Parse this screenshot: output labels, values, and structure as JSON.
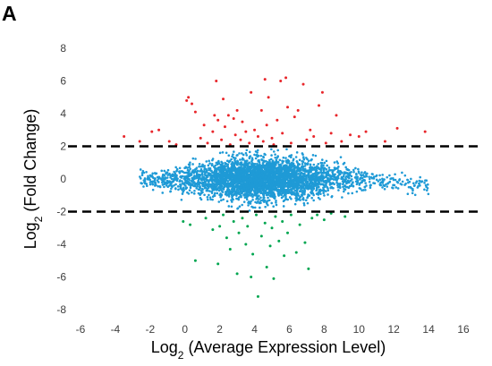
{
  "panel": {
    "letter": "A"
  },
  "chart_data": {
    "type": "scatter",
    "title": "",
    "xlabel": {
      "prefix": "Log",
      "subscript": "2",
      "suffix": " (Average Expression Level)"
    },
    "ylabel": {
      "prefix": "Log",
      "subscript": "2",
      "suffix": " (Fold Change)"
    },
    "xlim": [
      -6,
      16
    ],
    "ylim": [
      -8,
      8
    ],
    "x_ticks": [
      -6,
      -4,
      -2,
      0,
      2,
      4,
      6,
      8,
      10,
      12,
      14,
      16
    ],
    "y_ticks": [
      -8,
      -6,
      -4,
      -2,
      0,
      2,
      4,
      6,
      8
    ],
    "grid": false,
    "legend": "none",
    "thresholds": [
      2,
      -2
    ],
    "colors": {
      "up": "#e8262b",
      "down": "#00a650",
      "unchanged": "#1f9ad6",
      "threshold_line": "#000000"
    },
    "series": [
      {
        "key": "up",
        "points": [
          [
            -3.5,
            2.6
          ],
          [
            -2.6,
            2.3
          ],
          [
            -1.9,
            2.9
          ],
          [
            -1.5,
            3.0
          ],
          [
            -0.9,
            2.3
          ],
          [
            -0.5,
            2.1
          ],
          [
            0.1,
            4.8
          ],
          [
            0.2,
            5.0
          ],
          [
            0.4,
            4.6
          ],
          [
            0.6,
            4.1
          ],
          [
            0.9,
            2.5
          ],
          [
            1.1,
            3.3
          ],
          [
            1.3,
            2.2
          ],
          [
            1.6,
            2.9
          ],
          [
            1.7,
            3.9
          ],
          [
            1.8,
            6.0
          ],
          [
            1.9,
            3.6
          ],
          [
            2.1,
            2.4
          ],
          [
            2.2,
            4.9
          ],
          [
            2.3,
            3.2
          ],
          [
            2.5,
            3.9
          ],
          [
            2.6,
            2.1
          ],
          [
            2.8,
            3.7
          ],
          [
            2.9,
            2.7
          ],
          [
            3.0,
            4.2
          ],
          [
            3.2,
            2.4
          ],
          [
            3.3,
            3.5
          ],
          [
            3.5,
            2.9
          ],
          [
            3.7,
            2.2
          ],
          [
            3.8,
            5.3
          ],
          [
            4.0,
            3.0
          ],
          [
            4.2,
            2.6
          ],
          [
            4.4,
            4.2
          ],
          [
            4.5,
            2.3
          ],
          [
            4.6,
            6.1
          ],
          [
            4.7,
            3.3
          ],
          [
            4.8,
            5.0
          ],
          [
            5.0,
            2.5
          ],
          [
            5.1,
            2.1
          ],
          [
            5.3,
            3.6
          ],
          [
            5.5,
            6.0
          ],
          [
            5.6,
            2.8
          ],
          [
            5.8,
            6.2
          ],
          [
            5.9,
            4.4
          ],
          [
            6.1,
            2.2
          ],
          [
            6.3,
            3.8
          ],
          [
            6.5,
            4.2
          ],
          [
            6.8,
            5.8
          ],
          [
            7.0,
            2.4
          ],
          [
            7.2,
            3.0
          ],
          [
            7.4,
            2.6
          ],
          [
            7.7,
            4.5
          ],
          [
            7.9,
            5.3
          ],
          [
            8.1,
            2.2
          ],
          [
            8.4,
            2.8
          ],
          [
            8.7,
            3.9
          ],
          [
            9.0,
            2.3
          ],
          [
            9.5,
            2.7
          ],
          [
            10.0,
            2.6
          ],
          [
            10.4,
            2.9
          ],
          [
            11.5,
            2.3
          ],
          [
            12.2,
            3.1
          ],
          [
            13.8,
            2.9
          ]
        ]
      },
      {
        "key": "down",
        "points": [
          [
            -0.1,
            -2.6
          ],
          [
            0.3,
            -2.8
          ],
          [
            0.6,
            -5.0
          ],
          [
            1.2,
            -2.4
          ],
          [
            1.6,
            -3.1
          ],
          [
            1.9,
            -5.2
          ],
          [
            2.0,
            -2.9
          ],
          [
            2.2,
            -2.2
          ],
          [
            2.4,
            -3.6
          ],
          [
            2.6,
            -4.3
          ],
          [
            2.8,
            -2.6
          ],
          [
            3.0,
            -5.8
          ],
          [
            3.1,
            -3.3
          ],
          [
            3.3,
            -2.4
          ],
          [
            3.5,
            -4.0
          ],
          [
            3.6,
            -2.9
          ],
          [
            3.8,
            -6.0
          ],
          [
            3.9,
            -4.6
          ],
          [
            4.1,
            -2.2
          ],
          [
            4.2,
            -7.2
          ],
          [
            4.4,
            -3.5
          ],
          [
            4.6,
            -2.7
          ],
          [
            4.7,
            -5.4
          ],
          [
            4.9,
            -4.1
          ],
          [
            5.0,
            -3.0
          ],
          [
            5.1,
            -6.1
          ],
          [
            5.2,
            -2.3
          ],
          [
            5.4,
            -3.8
          ],
          [
            5.6,
            -2.6
          ],
          [
            5.7,
            -4.7
          ],
          [
            5.9,
            -3.3
          ],
          [
            6.1,
            -2.2
          ],
          [
            6.4,
            -4.5
          ],
          [
            6.6,
            -2.8
          ],
          [
            6.9,
            -3.9
          ],
          [
            7.1,
            -5.5
          ],
          [
            7.3,
            -2.4
          ],
          [
            7.6,
            -2.2
          ],
          [
            8.0,
            -2.5
          ],
          [
            8.4,
            -2.1
          ],
          [
            9.2,
            -2.3
          ]
        ]
      }
    ]
  }
}
